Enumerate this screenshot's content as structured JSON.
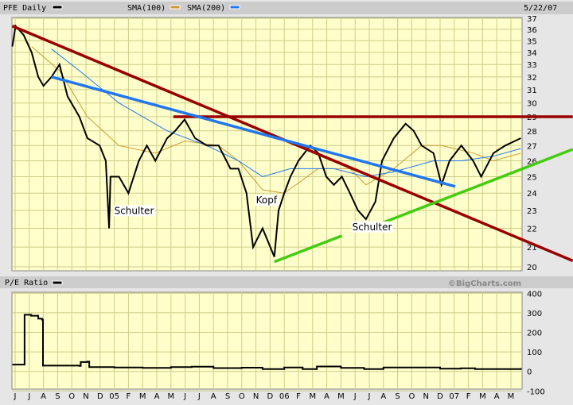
{
  "header": {
    "symbol_label": "PFE Daily",
    "sma100_label": "SMA(100)",
    "sma200_label": "SMA(200)",
    "date": "5/22/07"
  },
  "lower_header": {
    "label": "P/E Ratio",
    "copyright": "©BigCharts.com"
  },
  "colors": {
    "price": "#000000",
    "sma100": "#cc9933",
    "sma200": "#2277ee",
    "trend_red": "#990000",
    "trend_blue": "#2277ee",
    "trend_green": "#44cc11",
    "plot_bg": "#ffffcc",
    "grid": "#cccc88"
  },
  "x_ticks": [
    "J",
    "J",
    "A",
    "S",
    "O",
    "N",
    "D",
    "05",
    "F",
    "M",
    "A",
    "M",
    "J",
    "J",
    "A",
    "S",
    "O",
    "N",
    "D",
    "06",
    "F",
    "M",
    "A",
    "M",
    "J",
    "J",
    "A",
    "S",
    "O",
    "N",
    "D",
    "07",
    "F",
    "M",
    "A",
    "M"
  ],
  "chart_data": [
    {
      "type": "line",
      "yscale": "log",
      "ylim": [
        20,
        37
      ],
      "yticks": [
        "37",
        "36",
        "35",
        "34",
        "33",
        "32",
        "31",
        "30",
        "29",
        "28",
        "27",
        "26",
        "25",
        "24",
        "23",
        "22",
        "21",
        "20"
      ],
      "grid": true,
      "series": [
        {
          "name": "PFE Daily",
          "points": [
            [
              "2004-05-25",
              34.5
            ],
            [
              "2004-06-02",
              36.3
            ],
            [
              "2004-06-19",
              35.5
            ],
            [
              "2004-07-06",
              34
            ],
            [
              "2004-07-20",
              32
            ],
            [
              "2004-08-01",
              31.3
            ],
            [
              "2004-08-18",
              32
            ],
            [
              "2004-09-05",
              33
            ],
            [
              "2004-09-22",
              30.5
            ],
            [
              "2004-10-17",
              29
            ],
            [
              "2004-11-04",
              27.5
            ],
            [
              "2004-11-30",
              27
            ],
            [
              "2004-12-13",
              26
            ],
            [
              "2004-12-20",
              22
            ],
            [
              "2004-12-23",
              25
            ],
            [
              "2005-01-11",
              25
            ],
            [
              "2005-02-01",
              24
            ],
            [
              "2005-02-23",
              26
            ],
            [
              "2005-03-10",
              27
            ],
            [
              "2005-03-28",
              26
            ],
            [
              "2005-04-23",
              27.5
            ],
            [
              "2005-05-10",
              28
            ],
            [
              "2005-05-30",
              28.8
            ],
            [
              "2005-06-22",
              27.5
            ],
            [
              "2005-07-17",
              27
            ],
            [
              "2005-08-12",
              27
            ],
            [
              "2005-09-07",
              25.5
            ],
            [
              "2005-09-24",
              25.5
            ],
            [
              "2005-10-11",
              24
            ],
            [
              "2005-10-25",
              21
            ],
            [
              "2005-11-15",
              22
            ],
            [
              "2005-12-10",
              20.5
            ],
            [
              "2005-12-19",
              23
            ],
            [
              "2005-12-31",
              24
            ],
            [
              "2006-01-14",
              25
            ],
            [
              "2006-02-01",
              26
            ],
            [
              "2006-02-26",
              27
            ],
            [
              "2006-03-13",
              26.5
            ],
            [
              "2006-03-30",
              25
            ],
            [
              "2006-04-16",
              24.5
            ],
            [
              "2006-05-03",
              25
            ],
            [
              "2006-05-20",
              24
            ],
            [
              "2006-06-07",
              23
            ],
            [
              "2006-06-24",
              22.5
            ],
            [
              "2006-07-14",
              23.5
            ],
            [
              "2006-07-28",
              26
            ],
            [
              "2006-08-23",
              27.5
            ],
            [
              "2006-09-18",
              28.5
            ],
            [
              "2006-10-05",
              28
            ],
            [
              "2006-10-22",
              27
            ],
            [
              "2006-11-17",
              26.5
            ],
            [
              "2006-12-04",
              24.5
            ],
            [
              "2006-12-21",
              26
            ],
            [
              "2007-01-16",
              27
            ],
            [
              "2007-02-11",
              26
            ],
            [
              "2007-02-28",
              25
            ],
            [
              "2007-03-24",
              26.5
            ],
            [
              "2007-04-19",
              27
            ],
            [
              "2007-05-22",
              27.5
            ]
          ]
        },
        {
          "name": "SMA(100)",
          "points": [
            [
              "2004-07-06",
              34.5
            ],
            [
              "2004-09-05",
              32.5
            ],
            [
              "2004-11-04",
              29
            ],
            [
              "2005-01-11",
              27
            ],
            [
              "2005-03-28",
              26.5
            ],
            [
              "2005-05-30",
              27.3
            ],
            [
              "2005-08-12",
              27
            ],
            [
              "2005-09-24",
              26
            ],
            [
              "2005-11-15",
              24.2
            ],
            [
              "2005-12-31",
              24
            ],
            [
              "2006-03-13",
              25.5
            ],
            [
              "2006-05-20",
              25.5
            ],
            [
              "2006-06-24",
              24.5
            ],
            [
              "2006-08-23",
              25.5
            ],
            [
              "2006-10-22",
              27
            ],
            [
              "2006-12-04",
              27
            ],
            [
              "2007-02-11",
              26.5
            ],
            [
              "2007-03-24",
              26
            ],
            [
              "2007-05-22",
              26.5
            ]
          ]
        },
        {
          "name": "SMA(200)",
          "points": [
            [
              "2004-08-18",
              34.3
            ],
            [
              "2004-10-17",
              32.5
            ],
            [
              "2005-01-11",
              30
            ],
            [
              "2005-04-23",
              28
            ],
            [
              "2005-07-17",
              27
            ],
            [
              "2005-09-24",
              26
            ],
            [
              "2005-11-15",
              25
            ],
            [
              "2006-01-14",
              25.5
            ],
            [
              "2006-04-16",
              25.5
            ],
            [
              "2006-06-24",
              25
            ],
            [
              "2006-08-23",
              25.3
            ],
            [
              "2006-11-17",
              26
            ],
            [
              "2007-01-16",
              26
            ],
            [
              "2007-03-24",
              26.3
            ],
            [
              "2007-05-22",
              26.8
            ]
          ]
        }
      ],
      "trendlines": [
        {
          "color": "trend_red",
          "from": [
            "2004-05-25",
            36.3
          ],
          "to": [
            "2007-09-12",
            20.3
          ]
        },
        {
          "color": "trend_red",
          "from": [
            "2005-05-06",
            29
          ],
          "to": [
            "2007-09-12",
            29
          ]
        },
        {
          "color": "trend_blue",
          "from": [
            "2004-08-18",
            32
          ],
          "to": [
            "2007-01-03",
            24.4
          ]
        },
        {
          "color": "trend_green",
          "from": [
            "2005-12-10",
            20.25
          ],
          "to": [
            "2006-05-03",
            21.6
          ]
        },
        {
          "color": "trend_green",
          "from": [
            "2006-07-19",
            22.2
          ],
          "to": [
            "2007-09-12",
            26.75
          ]
        }
      ],
      "annotations": [
        {
          "text": "Schulter",
          "at": [
            "2005-01-01",
            22.8
          ]
        },
        {
          "text": "Kopf",
          "at": [
            "2005-11-01",
            23.4
          ]
        },
        {
          "text": "Schulter",
          "at": [
            "2006-05-25",
            21.9
          ]
        }
      ]
    },
    {
      "type": "line",
      "ylim": [
        -100,
        400
      ],
      "yticks": [
        "400",
        "300",
        "200",
        "100",
        "0",
        "-100"
      ],
      "grid": true,
      "series": [
        {
          "name": "P/E Ratio",
          "points": [
            [
              "2004-05-25",
              35
            ],
            [
              "2004-06-17",
              35
            ],
            [
              "2004-06-21",
              290
            ],
            [
              "2004-07-05",
              285
            ],
            [
              "2004-07-20",
              270
            ],
            [
              "2004-07-28",
              265
            ],
            [
              "2004-07-30",
              30
            ],
            [
              "2004-10-17",
              28
            ],
            [
              "2004-10-20",
              48
            ],
            [
              "2004-11-04",
              50
            ],
            [
              "2004-11-08",
              22
            ],
            [
              "2005-01-01",
              20
            ],
            [
              "2005-03-01",
              18
            ],
            [
              "2005-05-01",
              22
            ],
            [
              "2005-06-15",
              24
            ],
            [
              "2005-08-01",
              17
            ],
            [
              "2005-10-01",
              19
            ],
            [
              "2005-11-15",
              12
            ],
            [
              "2006-01-01",
              20
            ],
            [
              "2006-02-10",
              12
            ],
            [
              "2006-03-10",
              25
            ],
            [
              "2006-05-01",
              18
            ],
            [
              "2006-06-20",
              12
            ],
            [
              "2006-08-01",
              20
            ],
            [
              "2006-10-01",
              20
            ],
            [
              "2006-12-01",
              14
            ],
            [
              "2007-01-15",
              16
            ],
            [
              "2007-02-15",
              12
            ],
            [
              "2007-05-22",
              17
            ]
          ]
        }
      ]
    }
  ]
}
